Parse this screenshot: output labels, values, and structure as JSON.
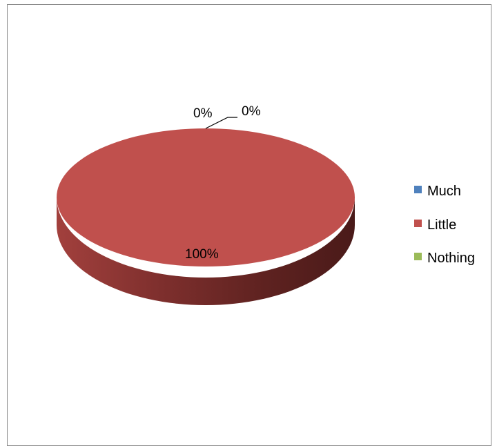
{
  "chart_data": {
    "type": "pie",
    "style": "3d",
    "categories": [
      "Much",
      "Little",
      "Nothing"
    ],
    "values": [
      0,
      100,
      0
    ],
    "data_labels": [
      "0%",
      "100%",
      "0%"
    ],
    "colors": [
      "#4f81bd",
      "#c0504d",
      "#9bbb59"
    ],
    "legend_position": "right",
    "title": "",
    "grid": false
  }
}
